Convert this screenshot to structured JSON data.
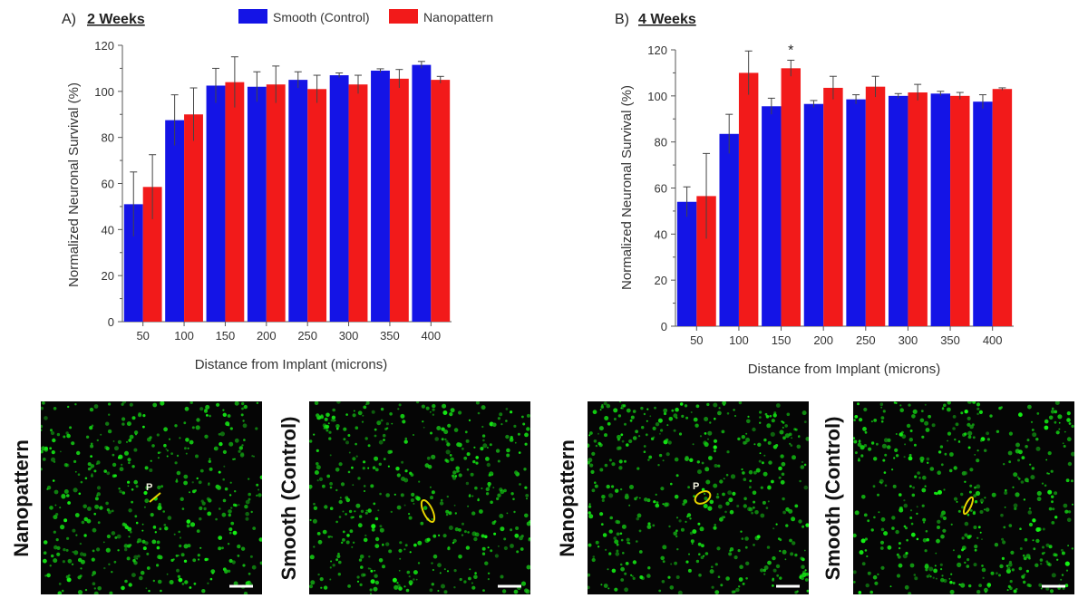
{
  "legend": {
    "items": [
      {
        "label": "Smooth (Control)",
        "color": "#1414e6"
      },
      {
        "label": "Nanopattern",
        "color": "#f21a1a"
      }
    ]
  },
  "chart_data": [
    {
      "type": "bar",
      "panel_label": "A)",
      "title": "2 Weeks",
      "xlabel": "Distance from Implant (microns)",
      "ylabel": "Normalized Neuronal Survival (%)",
      "ylim": [
        0,
        120
      ],
      "yticks": [
        0,
        20,
        40,
        60,
        80,
        100,
        120
      ],
      "categories": [
        "50",
        "100",
        "150",
        "200",
        "250",
        "300",
        "350",
        "400"
      ],
      "series": [
        {
          "name": "Smooth (Control)",
          "color": "#1414e6",
          "values": [
            51,
            87.5,
            102.5,
            102,
            105,
            107,
            109,
            111.5
          ],
          "errors": [
            14,
            11,
            7.5,
            6.5,
            3.5,
            1,
            0.8,
            1.5
          ]
        },
        {
          "name": "Nanopattern",
          "color": "#f21a1a",
          "values": [
            58.5,
            90,
            104,
            103,
            101,
            103,
            105.5,
            105
          ],
          "errors": [
            14,
            11.5,
            11,
            8,
            6,
            4,
            4,
            1.5
          ]
        }
      ],
      "annotations": []
    },
    {
      "type": "bar",
      "panel_label": "B)",
      "title": "4 Weeks",
      "xlabel": "Distance from Implant (microns)",
      "ylabel": "Normalized Neuronal Survival (%)",
      "ylim": [
        0,
        120
      ],
      "yticks": [
        0,
        20,
        40,
        60,
        80,
        100,
        120
      ],
      "categories": [
        "50",
        "100",
        "150",
        "200",
        "250",
        "300",
        "350",
        "400"
      ],
      "series": [
        {
          "name": "Smooth (Control)",
          "color": "#1414e6",
          "values": [
            54,
            83.5,
            95.5,
            96.5,
            98.5,
            100,
            101,
            97.5
          ],
          "errors": [
            6.5,
            8.5,
            3.5,
            1.5,
            2,
            1,
            1,
            3
          ]
        },
        {
          "name": "Nanopattern",
          "color": "#f21a1a",
          "values": [
            56.5,
            110,
            112,
            103.5,
            104,
            101.5,
            100,
            103
          ],
          "errors": [
            18.5,
            9.5,
            3.5,
            5,
            4.5,
            3.5,
            1.5,
            0.5
          ]
        }
      ],
      "annotations": [
        {
          "category": "150",
          "text": "*"
        }
      ]
    }
  ],
  "micrographs": [
    {
      "label": "Nanopattern",
      "marker_text": "P"
    },
    {
      "label": "Smooth (Control)",
      "marker_text": ""
    },
    {
      "label": "Nanopattern",
      "marker_text": "P"
    },
    {
      "label": "Smooth (Control)",
      "marker_text": ""
    }
  ]
}
